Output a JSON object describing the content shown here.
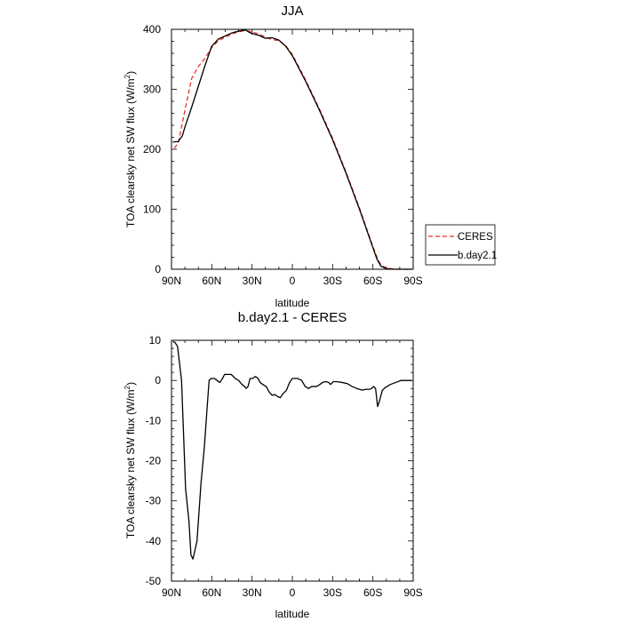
{
  "chart_data": [
    {
      "type": "line",
      "title": "JJA",
      "xlabel": "latitude",
      "ylabel": "TOA clearsky net SW flux (W/m",
      "ylabel_sup": "2",
      "ylabel_end": ")",
      "xlim": [
        90,
        -90
      ],
      "ylim": [
        0,
        400
      ],
      "x_ticks": [
        90,
        60,
        30,
        0,
        -30,
        -60,
        -90
      ],
      "x_tick_labels": [
        "90N",
        "60N",
        "30N",
        "0",
        "30S",
        "60S",
        "90S"
      ],
      "y_ticks": [
        0,
        100,
        200,
        300,
        400
      ],
      "y_tick_labels": [
        "0",
        "100",
        "200",
        "300",
        "400"
      ],
      "legend": "outside-right",
      "series": [
        {
          "name": "CERES",
          "color": "#e8312a",
          "dash": "dashed",
          "x": [
            88,
            85,
            80,
            75,
            70,
            65,
            60,
            55,
            50,
            45,
            40,
            35,
            30,
            25,
            20,
            15,
            10,
            5,
            0,
            -10,
            -20,
            -30,
            -40,
            -50,
            -55,
            -60,
            -63,
            -66,
            -70,
            -75,
            -80,
            -89
          ],
          "y": [
            202,
            210,
            265,
            318,
            338,
            352,
            370,
            381,
            387,
            392,
            396,
            398,
            396,
            392,
            387,
            383,
            381,
            373,
            358,
            315,
            268,
            218,
            162,
            102,
            70,
            38,
            20,
            7,
            2,
            0.5,
            0,
            0
          ]
        },
        {
          "name": "b.day2.1",
          "color": "#000000",
          "dash": "solid",
          "x": [
            89,
            85,
            82,
            80,
            75,
            70,
            65,
            60,
            55,
            50,
            45,
            40,
            35,
            32,
            30,
            25,
            20,
            15,
            10,
            5,
            0,
            -10,
            -20,
            -30,
            -40,
            -50,
            -55,
            -60,
            -63,
            -66,
            -70,
            -75,
            -80,
            -89
          ],
          "y": [
            212,
            213,
            222,
            237,
            270,
            305,
            340,
            372,
            384,
            389,
            394,
            397,
            399,
            395,
            393,
            390,
            385,
            386,
            382,
            372,
            356,
            313,
            266,
            216,
            160,
            100,
            68,
            36,
            17,
            5,
            1,
            0,
            0,
            0
          ]
        }
      ]
    },
    {
      "type": "line",
      "title": "b.day2.1 - CERES",
      "xlabel": "latitude",
      "ylabel": "TOA clearsky net SW flux (W/m",
      "ylabel_sup": "2",
      "ylabel_end": ")",
      "xlim": [
        90,
        -90
      ],
      "ylim": [
        -50,
        10
      ],
      "x_ticks": [
        90,
        60,
        30,
        0,
        -30,
        -60,
        -90
      ],
      "x_tick_labels": [
        "90N",
        "60N",
        "30N",
        "0",
        "30S",
        "60S",
        "90S"
      ],
      "y_ticks": [
        -50,
        -40,
        -30,
        -20,
        -10,
        0,
        10
      ],
      "y_tick_labels": [
        "-50",
        "-40",
        "-30",
        "-20",
        "-10",
        "0",
        "10"
      ],
      "series": [
        {
          "color": "#000000",
          "dash": "solid",
          "x": [
            89,
            87.5,
            85.5,
            82.5,
            79.5,
            77,
            75.5,
            74,
            71,
            68,
            65.5,
            63.5,
            62,
            60.5,
            58,
            56,
            54,
            52,
            50.5,
            48.5,
            45.5,
            42.5,
            40,
            37.5,
            35.5,
            34.5,
            33,
            31.5,
            29.5,
            27.5,
            25.5,
            24,
            22,
            19.5,
            17,
            15,
            13,
            11,
            9,
            7,
            4.5,
            3,
            2,
            0,
            -2,
            -4,
            -7,
            -9.5,
            -12,
            -14.5,
            -16,
            -18,
            -20.5,
            -22.5,
            -25,
            -27,
            -28.5,
            -30.5,
            -33,
            -37,
            -41,
            -44.5,
            -48,
            -52,
            -55,
            -57.5,
            -59,
            -60.5,
            -62,
            -63.5,
            -65,
            -67,
            -69,
            -73,
            -77,
            -81,
            -85,
            -89
          ],
          "y": [
            9.7,
            9.5,
            8.5,
            0,
            -27,
            -35,
            -43.5,
            -44.5,
            -40,
            -25.5,
            -16.5,
            -7,
            0,
            0.5,
            0.5,
            0,
            -0.5,
            0.5,
            1.5,
            1.5,
            1.5,
            0.5,
            0,
            -1,
            -1.5,
            -2,
            -1.5,
            0.5,
            0.5,
            1,
            0.5,
            -0.5,
            -1,
            -1.5,
            -3,
            -3.7,
            -3.5,
            -4,
            -4.3,
            -3.3,
            -2.5,
            -1.3,
            -0.5,
            0.5,
            0.5,
            0.5,
            0,
            -1.5,
            -2,
            -1.5,
            -1.5,
            -1.5,
            -1,
            -0.5,
            -0.3,
            -0.5,
            -1,
            -0.3,
            -0.3,
            -0.5,
            -0.8,
            -1.5,
            -2,
            -2.4,
            -2.2,
            -2.2,
            -2,
            -1.5,
            -2,
            -6.5,
            -5,
            -2.5,
            -1.8,
            -1,
            -0.5,
            0,
            0,
            0
          ]
        }
      ]
    }
  ]
}
